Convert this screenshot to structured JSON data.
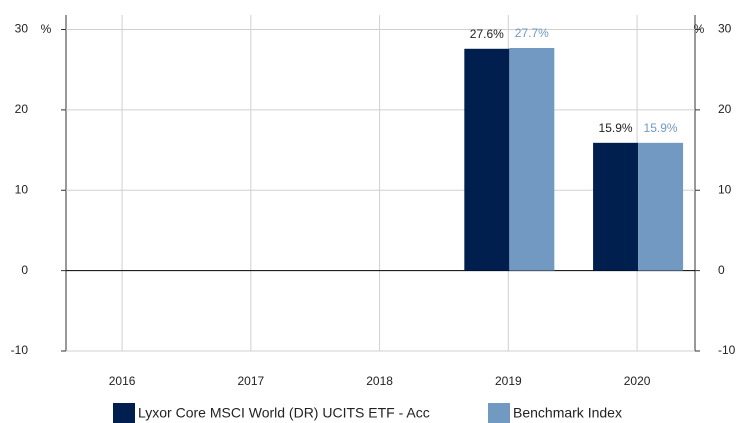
{
  "chart_data": {
    "type": "bar",
    "categories": [
      "2016",
      "2017",
      "2018",
      "2019",
      "2020"
    ],
    "series": [
      {
        "name": "Lyxor Core MSCI World (DR) UCITS ETF - Acc",
        "color": "#001e4e",
        "values": [
          null,
          null,
          null,
          27.6,
          15.9
        ],
        "value_labels": [
          null,
          null,
          null,
          "27.6%",
          "15.9%"
        ]
      },
      {
        "name": "Benchmark Index",
        "color": "#7199c1",
        "values": [
          null,
          null,
          null,
          27.7,
          15.9
        ],
        "value_labels": [
          null,
          null,
          null,
          "27.7%",
          "15.9%"
        ]
      }
    ],
    "y_unit": "%",
    "ylim": [
      -10,
      30
    ],
    "yticks": [
      -10,
      0,
      10,
      20,
      30
    ],
    "y2lim": [
      -10,
      30
    ],
    "y2ticks": [
      -10,
      0,
      10,
      20,
      30
    ],
    "grid": true,
    "legend": "bottom"
  }
}
